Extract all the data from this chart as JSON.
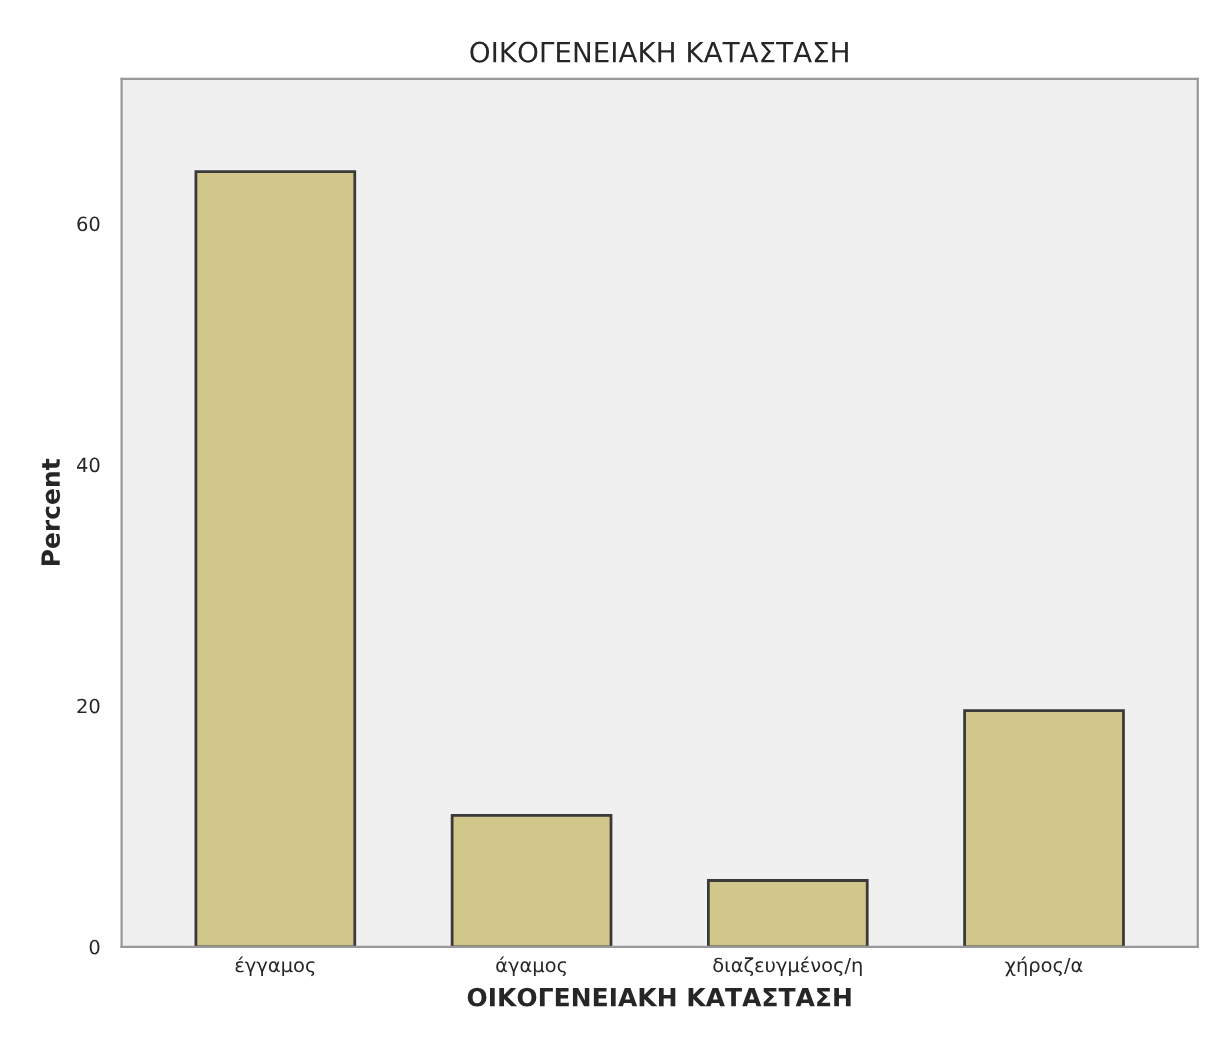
{
  "chart_data": {
    "type": "bar",
    "title": "ΟΙΚΟΓΕΝΕΙΑΚΗ ΚΑΤΑΣΤΑΣΗ",
    "xlabel": "ΟΙΚΟΓΕΝΕΙΑΚΗ ΚΑΤΑΣΤΑΣΗ",
    "ylabel": "Percent",
    "categories": [
      "έγγαμος",
      "άγαμος",
      "διαζευγμένος/η",
      "χήρος/α"
    ],
    "values": [
      64.3,
      10.9,
      5.5,
      19.6
    ],
    "color": "#d2c78a",
    "ylim": [
      0,
      72
    ],
    "yticks": [
      0,
      20,
      40,
      60
    ],
    "grid": false
  }
}
